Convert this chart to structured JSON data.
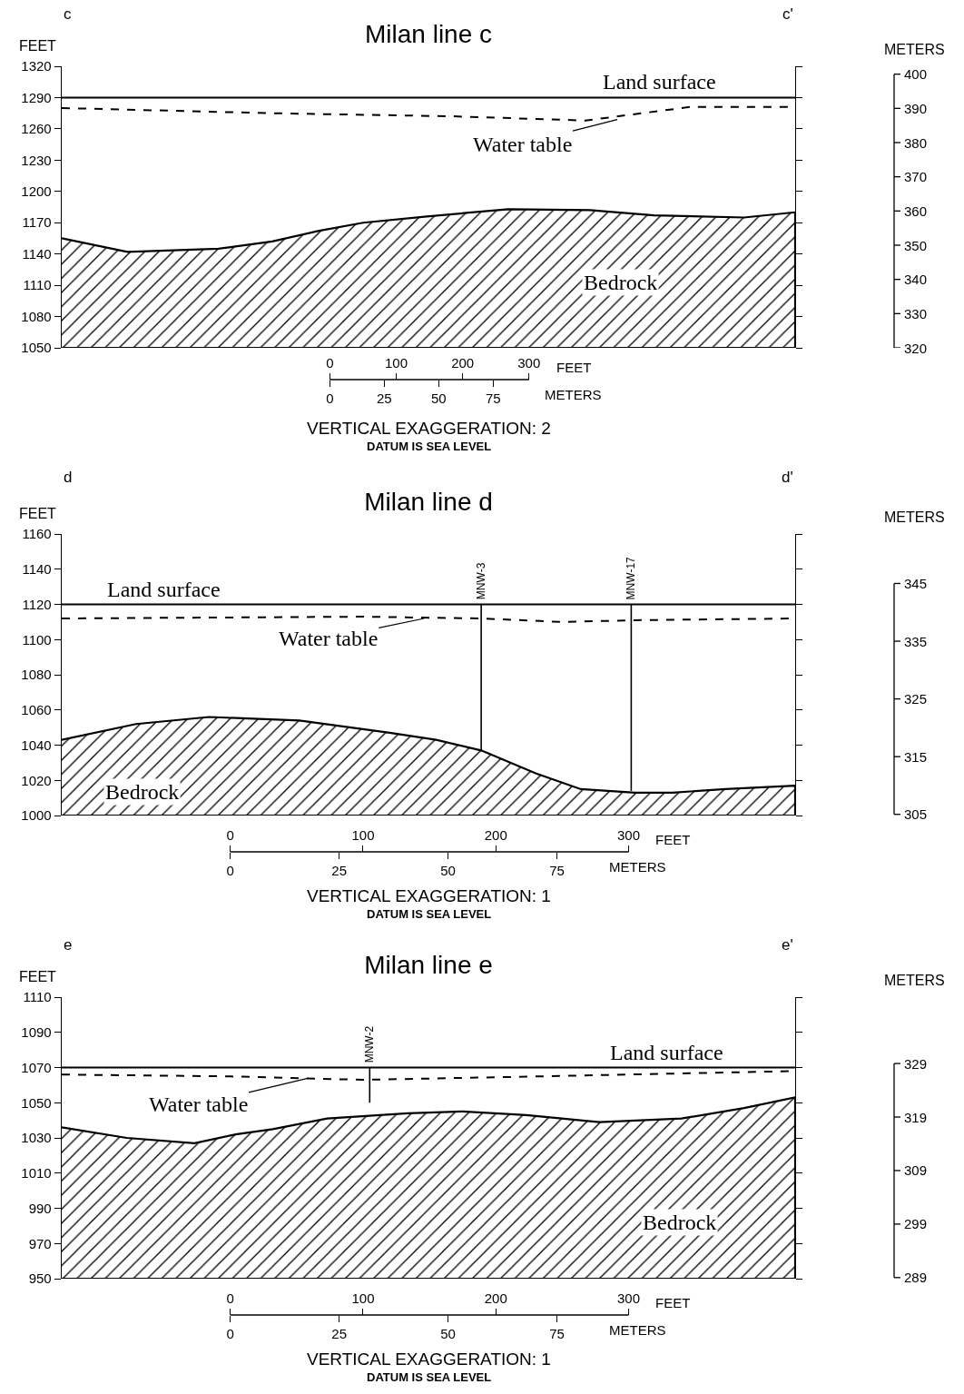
{
  "chart_data": [
    {
      "type": "line",
      "title": "Milan line c",
      "xlabel": "FEET",
      "x2label": "METERS",
      "ylabel": "FEET",
      "y2label": "METERS",
      "xlim": [
        -404,
        701
      ],
      "xticks": [
        0,
        100,
        200,
        300
      ],
      "x2lim": [
        -123.1,
        213.7
      ],
      "x2ticks": [
        0,
        25,
        50,
        75
      ],
      "ylim": [
        1050,
        1320
      ],
      "yticks": [
        1050,
        1080,
        1110,
        1140,
        1170,
        1200,
        1230,
        1260,
        1290,
        1320
      ],
      "y2lim": [
        320,
        402.3
      ],
      "y2ticks": [
        320,
        330,
        340,
        350,
        360,
        370,
        380,
        390,
        400
      ],
      "series": [
        {
          "type": "area",
          "color": "#000000",
          "x": [
            -404,
            -305,
            -168,
            -87,
            -18,
            50,
            146,
            269,
            392,
            488,
            624,
            701
          ],
          "values": [
            1155,
            1142,
            1145,
            1152,
            1162,
            1170,
            1176,
            1183,
            1182,
            1177,
            1175,
            1180
          ]
        },
        {
          "color": "#000000",
          "line_style": "solid",
          "x": [
            -404,
            701
          ],
          "values": [
            1290,
            1290
          ]
        },
        {
          "color": "#000000",
          "line_style": "dashed",
          "x": [
            -404,
            -87,
            187,
            385,
            543,
            701
          ],
          "values": [
            1280,
            1275,
            1272,
            1268,
            1281,
            1281
          ]
        }
      ],
      "annotations": [
        "c",
        "c'",
        "VERTICAL EXAGGERATION: 2",
        "DATUM IS SEA LEVEL",
        {
          "text": "Land surface",
          "x": 497,
          "y": 1290
        },
        {
          "text": "Water table",
          "x": 433,
          "y": 1269
        },
        "Bedrock"
      ]
    },
    {
      "type": "line",
      "title": "Milan line d",
      "xlabel": "FEET",
      "x2label": "METERS",
      "ylabel": "FEET",
      "y2label": "METERS",
      "xlim": [
        -127,
        425.5
      ],
      "xticks": [
        0,
        100,
        200,
        300
      ],
      "x2lim": [
        -38.7,
        129.7
      ],
      "x2ticks": [
        0,
        25,
        50,
        75
      ],
      "ylim": [
        1000,
        1160
      ],
      "yticks": [
        1000,
        1020,
        1040,
        1060,
        1080,
        1100,
        1120,
        1140,
        1160
      ],
      "y2lim": [
        304.8,
        353.57
      ],
      "y2ticks": [
        305,
        315,
        325,
        335,
        345
      ],
      "series": [
        {
          "type": "area",
          "color": "#000000",
          "x": [
            -127,
            -71,
            -16,
            52,
            120,
            155,
            189,
            230,
            264,
            305,
            333,
            373,
            425.5
          ],
          "values": [
            1043,
            1052,
            1056,
            1054,
            1047,
            1043,
            1037,
            1024,
            1015,
            1013,
            1013,
            1015,
            1017
          ]
        },
        {
          "color": "#000000",
          "line_style": "solid",
          "x": [
            -127,
            425.5
          ],
          "values": [
            1120,
            1120
          ]
        },
        {
          "color": "#000000",
          "line_style": "dashed",
          "x": [
            -127,
            100,
            189,
            250,
            305,
            425.5
          ],
          "values": [
            1112,
            1113,
            1112,
            1110,
            1111,
            1112
          ]
        },
        {
          "name": "MNW-3",
          "color": "#000000",
          "line_style": "solid",
          "x": [
            189,
            189
          ],
          "values": [
            1120,
            1037
          ]
        },
        {
          "name": "MNW-17",
          "color": "#000000",
          "line_style": "solid",
          "x": [
            302,
            302
          ],
          "values": [
            1120,
            1014
          ]
        }
      ],
      "annotations": [
        "d",
        "d'",
        "VERTICAL EXAGGERATION: 1",
        "DATUM IS SEA LEVEL",
        {
          "text": "Land surface",
          "x": -50,
          "y": 1120
        },
        {
          "text": "Water table",
          "x": 146,
          "y": 1112
        },
        "Bedrock"
      ]
    },
    {
      "type": "line",
      "title": "Milan line e",
      "xlabel": "FEET",
      "x2label": "METERS",
      "ylabel": "FEET",
      "y2label": "METERS",
      "xlim": [
        -127,
        425.5
      ],
      "xticks": [
        0,
        100,
        200,
        300
      ],
      "x2lim": [
        -38.7,
        129.7
      ],
      "x2ticks": [
        0,
        25,
        50,
        75
      ],
      "ylim": [
        950,
        1110
      ],
      "yticks": [
        950,
        970,
        990,
        1010,
        1030,
        1050,
        1070,
        1090,
        1110
      ],
      "y2lim": [
        288.8,
        341.4
      ],
      "y2ticks": [
        289,
        299,
        309,
        319,
        329
      ],
      "series": [
        {
          "type": "area",
          "color": "#000000",
          "x": [
            -127,
            -78,
            -27,
            4,
            32,
            73,
            134,
            175,
            223,
            278,
            340,
            387,
            425.5
          ],
          "values": [
            1036,
            1030,
            1027,
            1032,
            1035,
            1041,
            1044,
            1045,
            1043,
            1039,
            1041,
            1047,
            1053
          ]
        },
        {
          "color": "#000000",
          "line_style": "solid",
          "x": [
            -127,
            425.5
          ],
          "values": [
            1070,
            1070
          ]
        },
        {
          "color": "#000000",
          "line_style": "dashed",
          "x": [
            -127,
            -3,
            100,
            236,
            425.5
          ],
          "values": [
            1066,
            1065,
            1063,
            1065,
            1068
          ]
        },
        {
          "name": "MNW-2",
          "color": "#000000",
          "line_style": "solid",
          "x": [
            105,
            105
          ],
          "values": [
            1070,
            1050
          ]
        }
      ],
      "annotations": [
        "e",
        "e'",
        "VERTICAL EXAGGERATION: 1",
        "DATUM IS SEA LEVEL",
        {
          "text": "Land surface",
          "x": 329,
          "y": 1070
        },
        {
          "text": "Water table",
          "x": 59,
          "y": 1064
        },
        "Bedrock"
      ]
    }
  ]
}
